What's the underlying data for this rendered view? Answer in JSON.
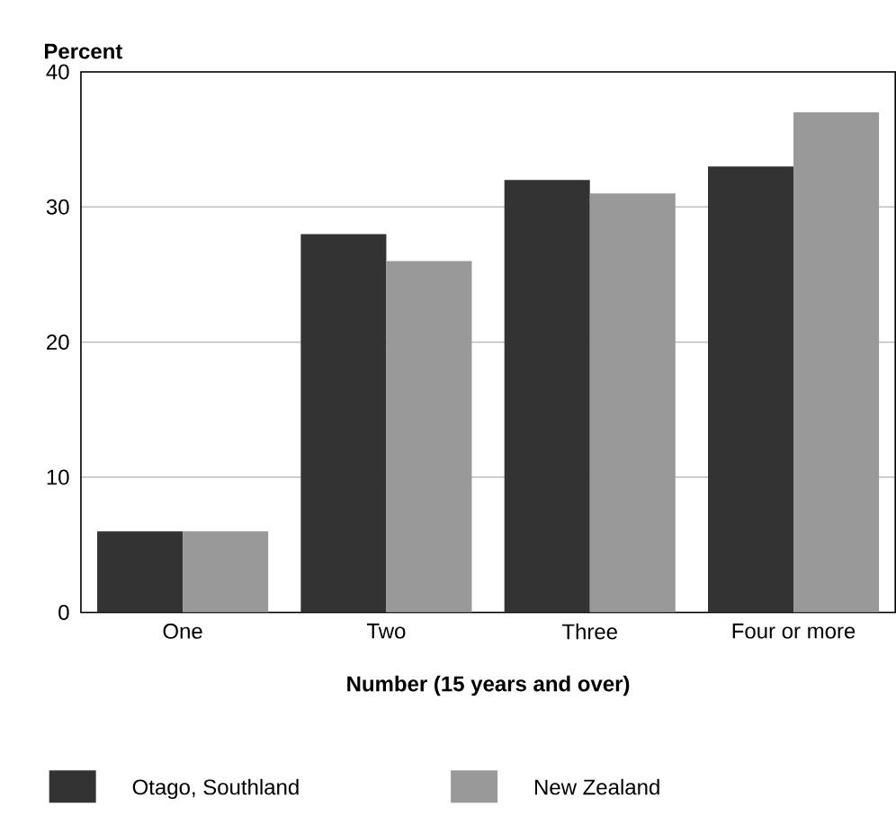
{
  "chart_data": {
    "type": "bar",
    "ylabel": "Percent",
    "xlabel": "Number (15 years and over)",
    "categories": [
      "One",
      "Two",
      "Three",
      "Four or more"
    ],
    "series": [
      {
        "name": "Otago, Southland",
        "color": "#333333",
        "values": [
          6,
          28,
          32,
          33
        ]
      },
      {
        "name": "New Zealand",
        "color": "#999999",
        "values": [
          6,
          26,
          31,
          37
        ]
      }
    ],
    "ylim": [
      0,
      40
    ],
    "yticks": [
      0,
      10,
      20,
      30,
      40
    ],
    "grid": "y",
    "legend": "bottom"
  }
}
